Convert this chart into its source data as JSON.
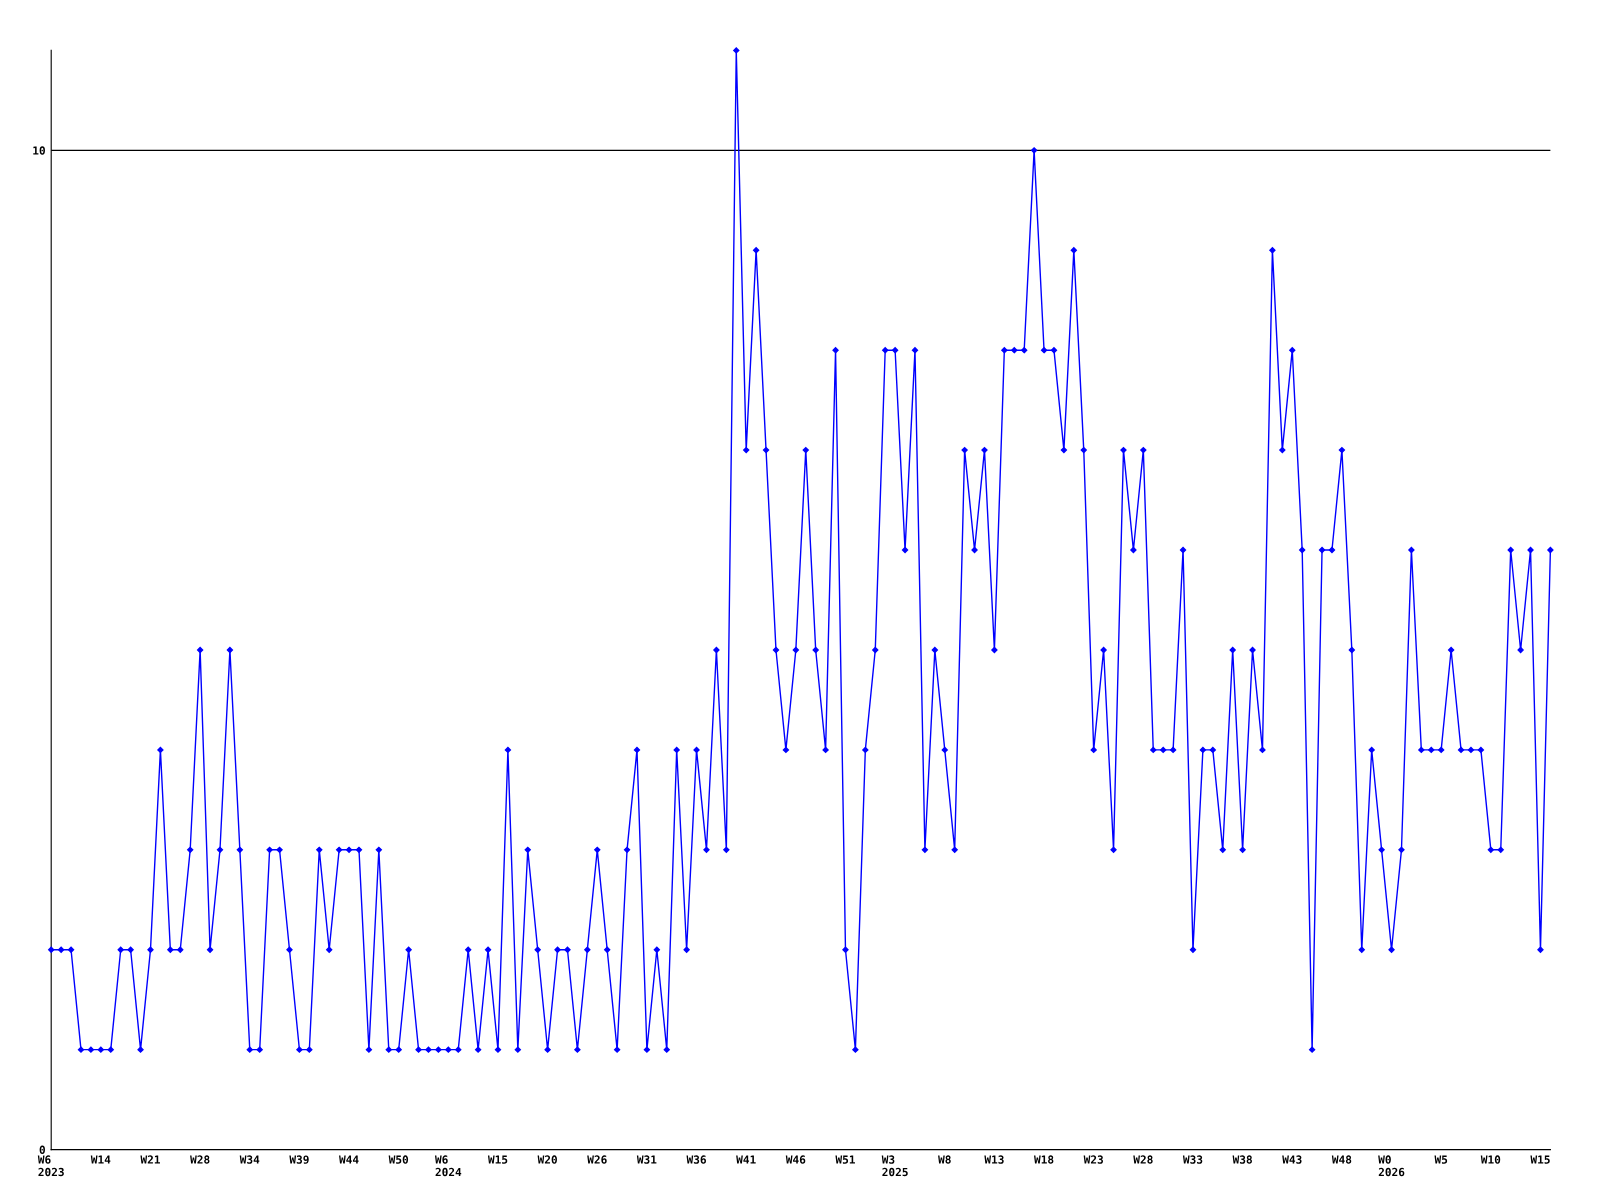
{
  "chart_data": {
    "type": "line",
    "categories": [
      "W6\n2023",
      null,
      null,
      null,
      null,
      "W14",
      null,
      null,
      null,
      null,
      "W21",
      null,
      null,
      null,
      null,
      "W28",
      null,
      null,
      null,
      null,
      "W34",
      null,
      null,
      null,
      null,
      "W39",
      null,
      null,
      null,
      null,
      "W44",
      null,
      null,
      null,
      null,
      "W50",
      null,
      null,
      null,
      null,
      "W6\n2024",
      null,
      null,
      null,
      null,
      "W15",
      null,
      null,
      null,
      null,
      "W20",
      null,
      null,
      null,
      null,
      "W26",
      null,
      null,
      null,
      null,
      "W31",
      null,
      null,
      null,
      null,
      "W36",
      null,
      null,
      null,
      null,
      "W41",
      null,
      null,
      null,
      null,
      "W46",
      null,
      null,
      null,
      null,
      "W51",
      null,
      null,
      null,
      null,
      "W3\n2025",
      null,
      null,
      null,
      null,
      "W8",
      null,
      null,
      null,
      null,
      "W13",
      null,
      null,
      null,
      null,
      "W18",
      null,
      null,
      null,
      null,
      "W23",
      null,
      null,
      null,
      null,
      "W28",
      null,
      null,
      null,
      null,
      "W33",
      null,
      null,
      null,
      null,
      "W38",
      null,
      null,
      null,
      null,
      "W43",
      null,
      null,
      null,
      null,
      "W48",
      null,
      null,
      null,
      null,
      "W0\n2026",
      null,
      null,
      null,
      null,
      "W5",
      null,
      null,
      null,
      null,
      "W10",
      null,
      null,
      null,
      null,
      "W15",
      null
    ],
    "series": [
      {
        "color": "#0000ff",
        "values": [
          2,
          2,
          2,
          1,
          1,
          1,
          1,
          2,
          2,
          1,
          2,
          4,
          2,
          2,
          3,
          5,
          2,
          3,
          5,
          3,
          1,
          1,
          3,
          3,
          2,
          1,
          1,
          3,
          2,
          3,
          3,
          3,
          1,
          3,
          1,
          1,
          2,
          1,
          1,
          1,
          1,
          1,
          2,
          1,
          2,
          1,
          4,
          1,
          3,
          2,
          1,
          2,
          2,
          1,
          2,
          3,
          2,
          1,
          3,
          4,
          1,
          2,
          1,
          4,
          2,
          4,
          3,
          5,
          3,
          11,
          7,
          9,
          7,
          5,
          4,
          5,
          7,
          5,
          4,
          8,
          2,
          1,
          4,
          5,
          8,
          8,
          6,
          8,
          3,
          5,
          4,
          3,
          7,
          6,
          7,
          5,
          8,
          8,
          8,
          10,
          8,
          8,
          7,
          9,
          7,
          4,
          5,
          3,
          7,
          6,
          7,
          4,
          4,
          4,
          6,
          2,
          4,
          4,
          3,
          5,
          3,
          5,
          4,
          9,
          7,
          8,
          6,
          1,
          6,
          6,
          7,
          5,
          2,
          4,
          3,
          2,
          3,
          6,
          4,
          4,
          4,
          5,
          4,
          4,
          4,
          3,
          3,
          6,
          5,
          6,
          2,
          6
        ]
      }
    ],
    "ylim": [
      0,
      11
    ],
    "yticks": [
      0,
      10
    ],
    "grid": "y",
    "marker": "diamond",
    "line_style": "solid",
    "legend": false
  }
}
